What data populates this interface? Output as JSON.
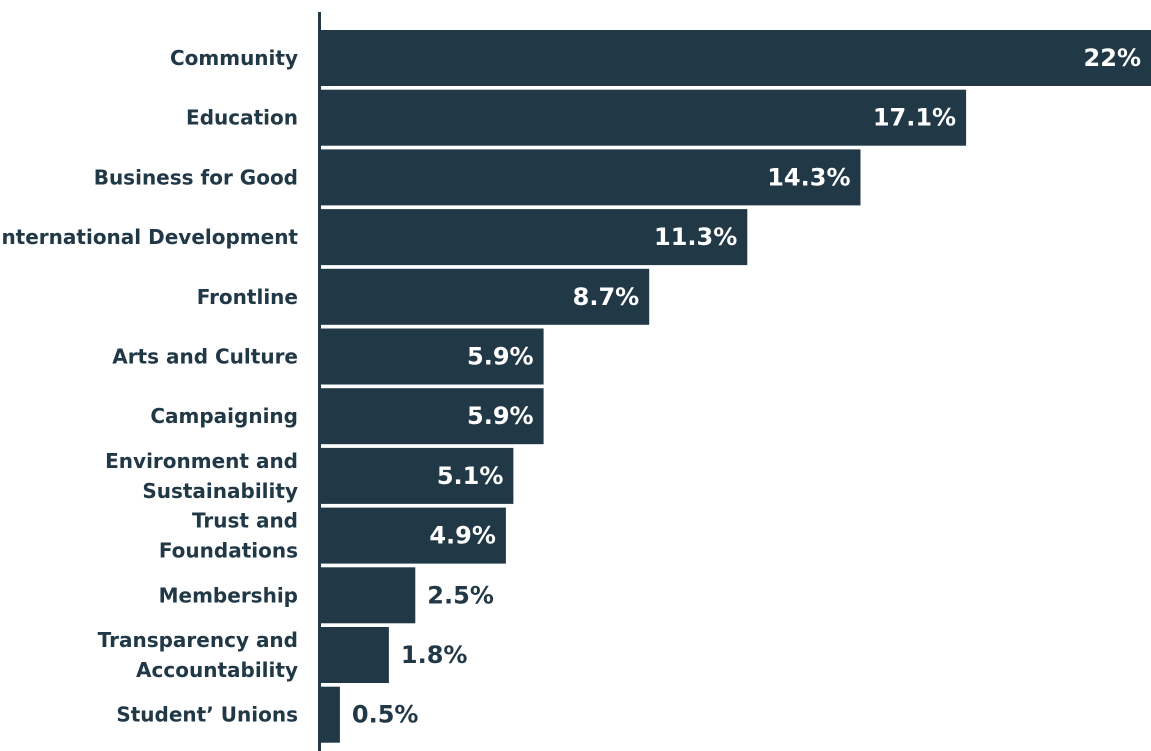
{
  "chart_data": {
    "type": "bar",
    "orientation": "horizontal",
    "categories": [
      "Community",
      "Education",
      "Business for Good",
      "International Development",
      "Frontline",
      "Arts and Culture",
      "Campaigning",
      "Environment and Sustainability",
      "Trust and Foundations",
      "Membership",
      "Transparency and Accountability",
      "Student’ Unions"
    ],
    "category_display_lines": [
      [
        "Community"
      ],
      [
        "Education"
      ],
      [
        "Business for Good"
      ],
      [
        "International Development"
      ],
      [
        "Frontline"
      ],
      [
        "Arts and Culture"
      ],
      [
        "Campaigning"
      ],
      [
        "Environment and",
        "Sustainability"
      ],
      [
        "Trust and",
        "Foundations"
      ],
      [
        "Membership"
      ],
      [
        "Transparency and",
        "Accountability"
      ],
      [
        "Student’ Unions"
      ]
    ],
    "values": [
      22,
      17.1,
      14.3,
      11.3,
      8.7,
      5.9,
      5.9,
      5.1,
      4.9,
      2.5,
      1.8,
      0.5
    ],
    "value_labels": [
      "22%",
      "17.1%",
      "14.3%",
      "11.3%",
      "8.7%",
      "5.9%",
      "5.9%",
      "5.1%",
      "4.9%",
      "2.5%",
      "1.8%",
      "0.5%"
    ],
    "xlim": [
      0,
      22
    ],
    "grid": false,
    "legend": "none",
    "colors": {
      "bar": "#213847",
      "axis": "#213847",
      "category_text": "#213847",
      "value_text_inside": "#ffffff",
      "value_text_outside": "#213847"
    }
  }
}
